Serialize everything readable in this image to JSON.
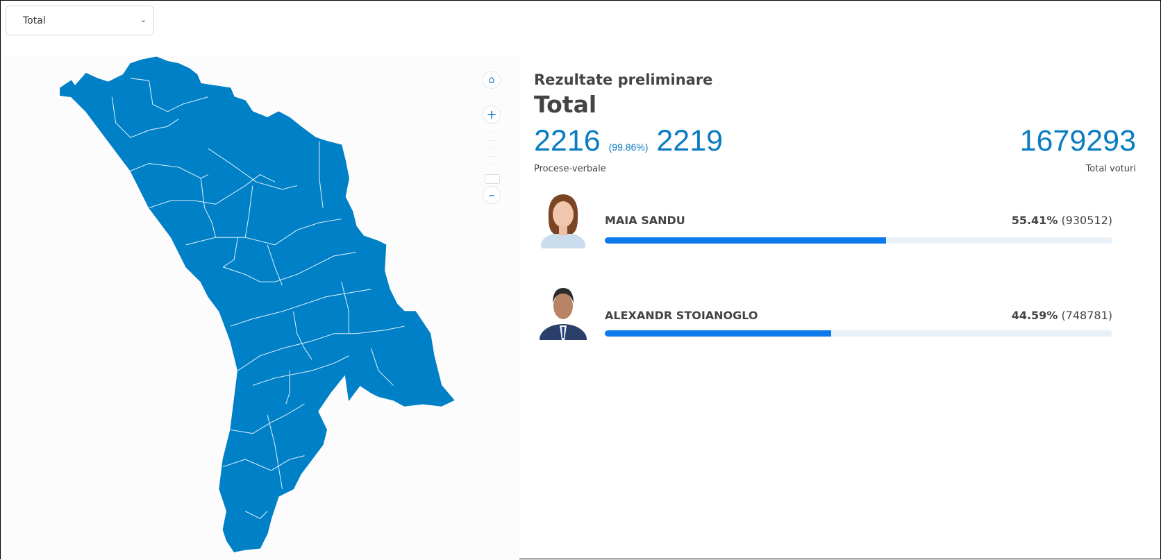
{
  "filter": {
    "selected": "Total"
  },
  "map": {
    "fill_color": "#0080c6",
    "border_color": "#d6ecf8",
    "controls": [
      "home-icon",
      "zoom-in-icon",
      "zoom-out-icon"
    ]
  },
  "header": {
    "subtitle": "Rezultate preliminare",
    "title": "Total"
  },
  "stats": {
    "counted": "2216",
    "percent": "(99.86%)",
    "total_reports": "2219",
    "reports_label": "Procese-verbale",
    "total_votes": "1679293",
    "votes_label": "Total voturi"
  },
  "candidates": [
    {
      "name": "MAIA SANDU",
      "percent": "55.41%",
      "votes": "(930512)",
      "share": 55.41
    },
    {
      "name": "ALEXANDR STOIANOGLO",
      "percent": "44.59%",
      "votes": "(748781)",
      "share": 44.59
    }
  ],
  "colors": {
    "accent": "#0a7cc3",
    "bar": "#0d7aeb",
    "bar_track": "#e8f0f8"
  }
}
